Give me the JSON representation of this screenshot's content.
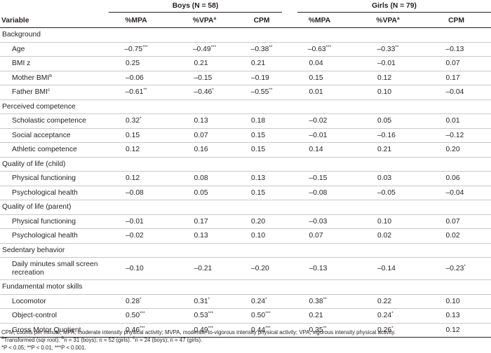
{
  "header": {
    "variable": "Variable",
    "boys_group": "Boys (N = 58)",
    "girls_group": "Girls (N = 79)",
    "col_mpa": "%MPA",
    "col_vpa": "%VPA",
    "col_vpa_sup": "a",
    "col_cpm": "CPM"
  },
  "sections": [
    {
      "title": "Background",
      "rows": [
        {
          "label": "Age",
          "sup": "",
          "vals": [
            "–0.75",
            "–0.49",
            "–0.38",
            "–0.63",
            "–0.33",
            "–0.13"
          ],
          "stars": [
            "***",
            "***",
            "**",
            "***",
            "**",
            ""
          ]
        },
        {
          "label": "BMI z",
          "sup": "",
          "vals": [
            "0.25",
            "0.21",
            "0.21",
            "0.04",
            "–0.01",
            "0.07"
          ],
          "stars": [
            "",
            "",
            "",
            "",
            "",
            ""
          ]
        },
        {
          "label": "Mother BMI",
          "sup": "b",
          "vals": [
            "–0.06",
            "–0.15",
            "–0.19",
            "0.15",
            "0.12",
            "0.17"
          ],
          "stars": [
            "",
            "",
            "",
            "",
            "",
            ""
          ]
        },
        {
          "label": "Father BMI",
          "sup": "c",
          "vals": [
            "–0.61",
            "–0.46",
            "–0.55",
            "0.01",
            "0.10",
            "–0.04"
          ],
          "stars": [
            "**",
            "*",
            "**",
            "",
            "",
            ""
          ]
        }
      ]
    },
    {
      "title": "Perceived competence",
      "rows": [
        {
          "label": "Scholastic competence",
          "sup": "",
          "vals": [
            "0.32",
            "0.13",
            "0.18",
            "–0.02",
            "0.05",
            "0.01"
          ],
          "stars": [
            "*",
            "",
            "",
            "",
            "",
            ""
          ]
        },
        {
          "label": "Social acceptance",
          "sup": "",
          "vals": [
            "0.15",
            "0.07",
            "0.15",
            "–0.01",
            "–0.16",
            "–0.12"
          ],
          "stars": [
            "",
            "",
            "",
            "",
            "",
            ""
          ]
        },
        {
          "label": "Athletic competence",
          "sup": "",
          "vals": [
            "0.12",
            "0.16",
            "0.15",
            "0.14",
            "0.21",
            "0.20"
          ],
          "stars": [
            "",
            "",
            "",
            "",
            "",
            ""
          ]
        }
      ]
    },
    {
      "title": "Quality of life (child)",
      "rows": [
        {
          "label": "Physical functioning",
          "sup": "",
          "vals": [
            "0.12",
            "0.08",
            "0.13",
            "–0.15",
            "0.03",
            "0.06"
          ],
          "stars": [
            "",
            "",
            "",
            "",
            "",
            ""
          ]
        },
        {
          "label": "Psychological health",
          "sup": "",
          "vals": [
            "–0.08",
            "0.05",
            "0.15",
            "–0.08",
            "–0.05",
            "–0.04"
          ],
          "stars": [
            "",
            "",
            "",
            "",
            "",
            ""
          ]
        }
      ]
    },
    {
      "title": "Quality of life (parent)",
      "rows": [
        {
          "label": "Physical functioning",
          "sup": "",
          "vals": [
            "–0.01",
            "0.17",
            "0.20",
            "–0.03",
            "0.10",
            "0.07"
          ],
          "stars": [
            "",
            "",
            "",
            "",
            "",
            ""
          ]
        },
        {
          "label": "Psychological health",
          "sup": "",
          "vals": [
            "–0.02",
            "0.13",
            "0.10",
            "0.07",
            "0.02",
            "0.02"
          ],
          "stars": [
            "",
            "",
            "",
            "",
            "",
            ""
          ]
        }
      ]
    },
    {
      "title": "Sedentary behavior",
      "rows": [
        {
          "label": "Daily minutes small screen recreation",
          "sup": "",
          "tall": true,
          "vals": [
            "–0.10",
            "–0.21",
            "–0.20",
            "–0.13",
            "–0.14",
            "–0.23"
          ],
          "stars": [
            "",
            "",
            "",
            "",
            "",
            "*"
          ]
        }
      ]
    },
    {
      "title": "Fundamental motor skills",
      "rows": [
        {
          "label": "Locomotor",
          "sup": "",
          "vals": [
            "0.28",
            "0.31",
            "0.24",
            "0.38",
            "0.22",
            "0.10"
          ],
          "stars": [
            "*",
            "*",
            "*",
            "**",
            "",
            ""
          ]
        },
        {
          "label": "Object-control",
          "sup": "",
          "vals": [
            "0.50",
            "0.53",
            "0.50",
            "0.21",
            "0.24",
            "0.13"
          ],
          "stars": [
            "***",
            "***",
            "***",
            "",
            "*",
            ""
          ]
        },
        {
          "label": "Gross Motor Quotient",
          "sup": "",
          "vals": [
            "0.46",
            "0.49",
            "0.44",
            "0.35",
            "0.26",
            "0.12"
          ],
          "stars": [
            "***",
            "***",
            "***",
            "**",
            "*",
            ""
          ]
        }
      ]
    }
  ],
  "footnotes": {
    "line1": "CPM, counts per minute; MPA, moderate intensity physical activity; MVPA, moderate-to-vigorous intensity physical activity; VPA, vigorous intensity physical activity.",
    "line2_a_sup": "a",
    "line2_a": "Transformed (sqr root). ",
    "line2_b_sup": "b",
    "line2_b": "n = 31 (boys); n = 52 (girls). ",
    "line2_c_sup": "c",
    "line2_c": "n = 24 (boys); n = 47 (girls).",
    "line3": "*P < 0.05; **P < 0.01; ***P < 0.001."
  }
}
